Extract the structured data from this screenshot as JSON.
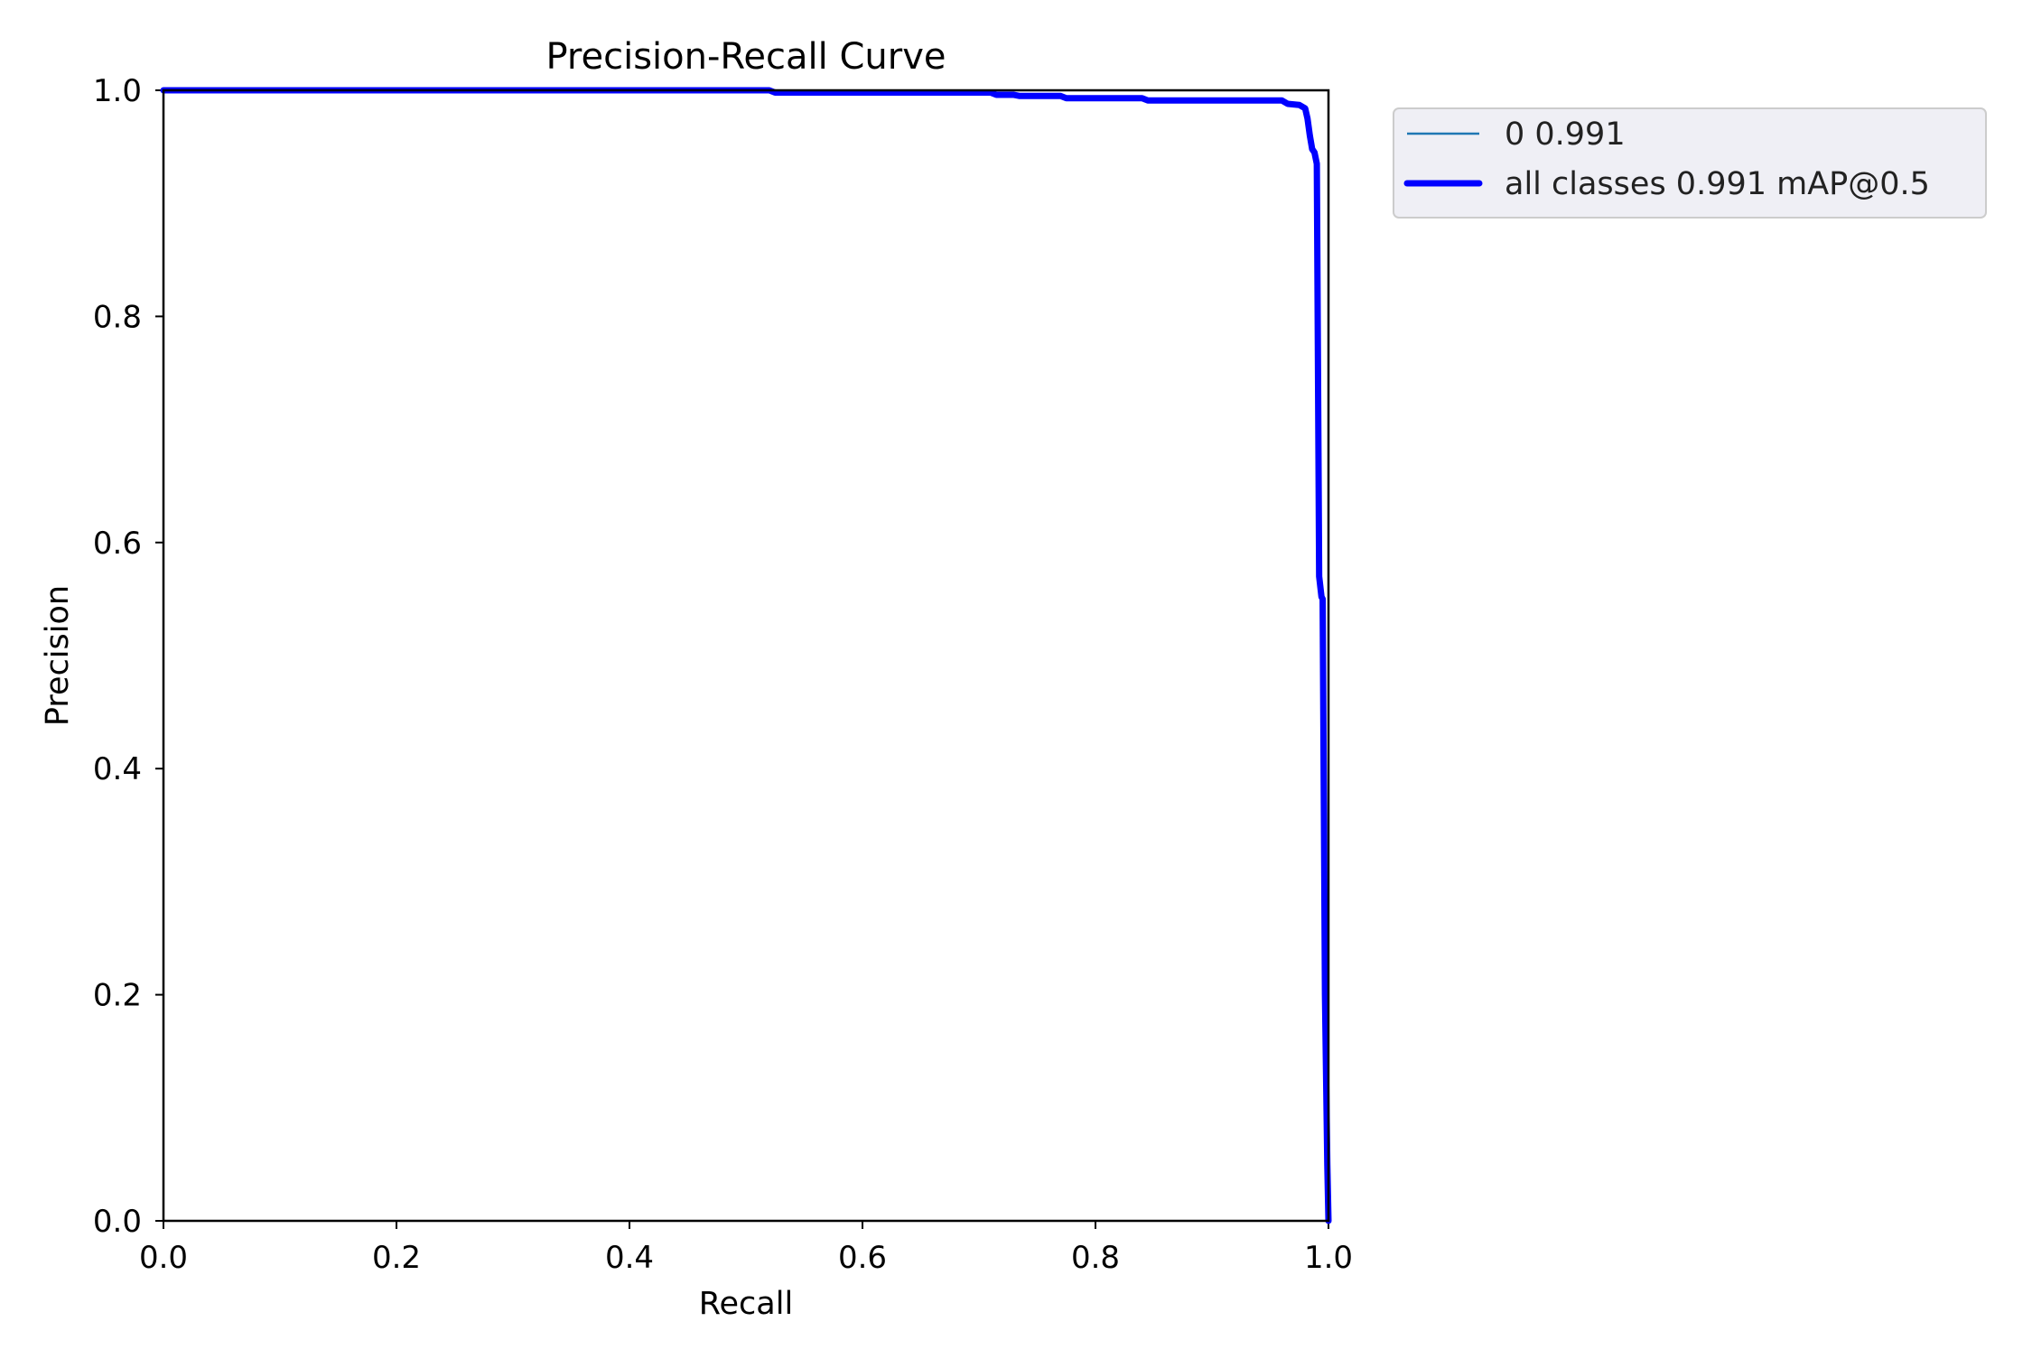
{
  "chart_data": {
    "type": "line",
    "title": "Precision-Recall Curve",
    "xlabel": "Recall",
    "ylabel": "Precision",
    "xlim": [
      0,
      1
    ],
    "ylim": [
      0,
      1
    ],
    "xticks": [
      "0.0",
      "0.2",
      "0.4",
      "0.6",
      "0.8",
      "1.0"
    ],
    "yticks": [
      "0.0",
      "0.2",
      "0.4",
      "0.6",
      "0.8",
      "1.0"
    ],
    "grid": false,
    "legend_position": "outside-top-right",
    "series": [
      {
        "name": "0 0.991",
        "color": "#1f77b4",
        "x": [
          0.0,
          0.52,
          0.525,
          0.71,
          0.715,
          0.73,
          0.735,
          0.77,
          0.775,
          0.84,
          0.845,
          0.96,
          0.965,
          0.975,
          0.98,
          0.982,
          0.984,
          0.986,
          0.988,
          0.99,
          0.992,
          0.994,
          0.995,
          0.997,
          0.999,
          1.0
        ],
        "y": [
          1.0,
          1.0,
          0.998,
          0.998,
          0.996,
          0.996,
          0.995,
          0.995,
          0.993,
          0.993,
          0.991,
          0.991,
          0.988,
          0.987,
          0.984,
          0.975,
          0.96,
          0.948,
          0.945,
          0.935,
          0.57,
          0.552,
          0.55,
          0.2,
          0.05,
          0.0
        ]
      },
      {
        "name": "all classes 0.991 mAP@0.5",
        "color": "#0000ff",
        "x": [
          0.0,
          0.52,
          0.525,
          0.71,
          0.715,
          0.73,
          0.735,
          0.77,
          0.775,
          0.84,
          0.845,
          0.96,
          0.965,
          0.975,
          0.98,
          0.982,
          0.984,
          0.986,
          0.988,
          0.99,
          0.992,
          0.994,
          0.995,
          0.997,
          0.999,
          1.0
        ],
        "y": [
          1.0,
          1.0,
          0.998,
          0.998,
          0.996,
          0.996,
          0.995,
          0.995,
          0.993,
          0.993,
          0.991,
          0.991,
          0.988,
          0.987,
          0.984,
          0.975,
          0.96,
          0.948,
          0.945,
          0.935,
          0.57,
          0.552,
          0.55,
          0.2,
          0.05,
          0.0
        ]
      }
    ]
  }
}
